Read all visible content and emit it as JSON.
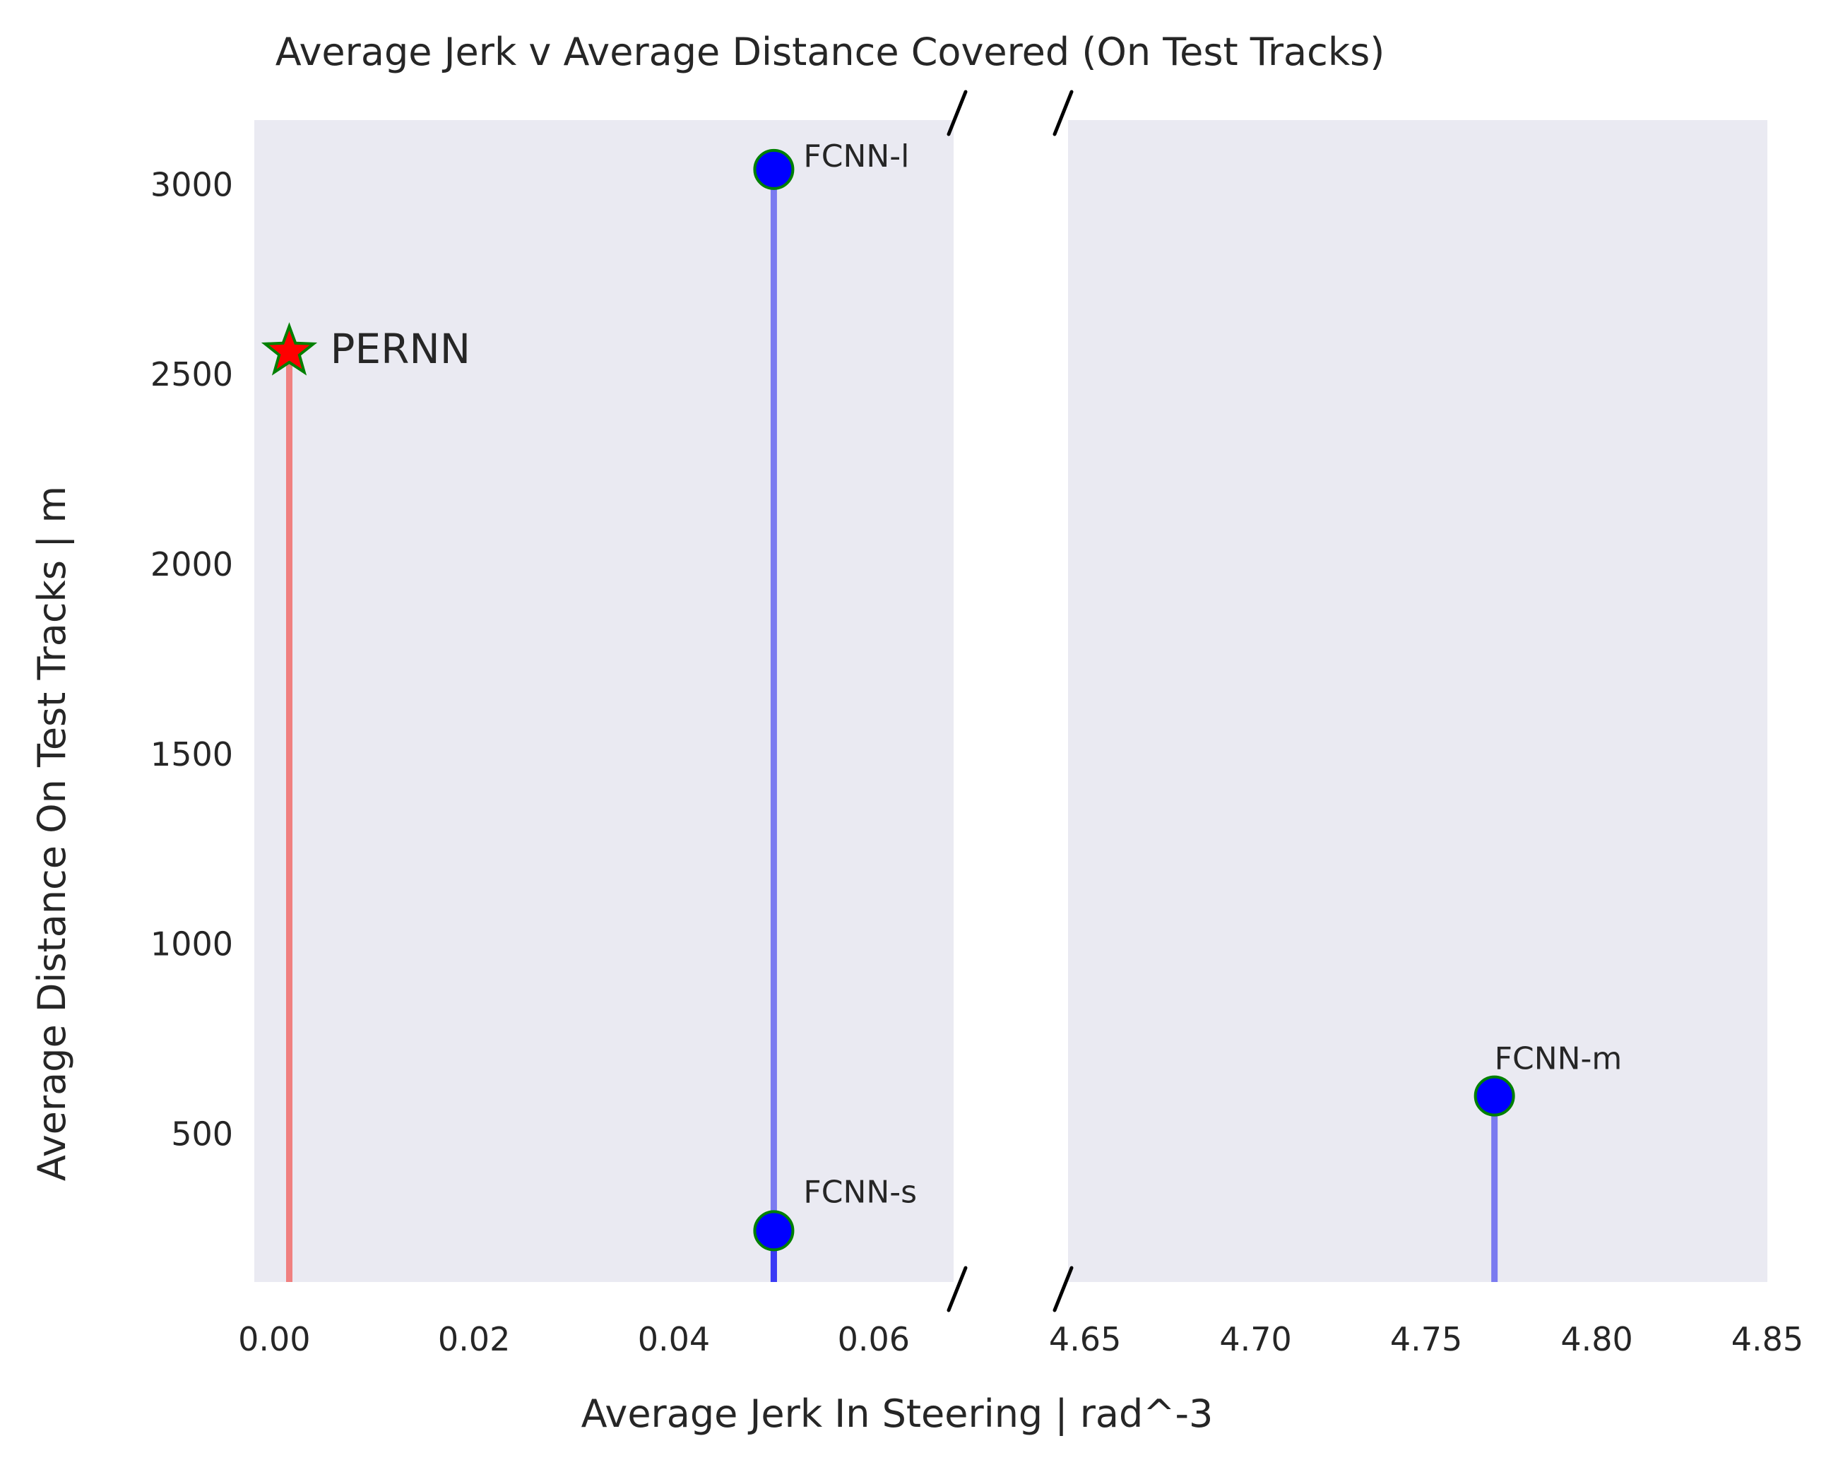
{
  "chart_data": {
    "type": "scatter",
    "title": "Average Jerk v Average Distance Covered (On Test Tracks)",
    "xlabel": "Average Jerk In Steering | rad^-3",
    "ylabel": "Average Distance On Test Tracks | m",
    "broken_x_axis": true,
    "x_segments": [
      {
        "xlim": [
          -0.002,
          0.068
        ],
        "xticks": [
          "0.00",
          "0.02",
          "0.04",
          "0.06"
        ],
        "xtick_values": [
          0.0,
          0.02,
          0.04,
          0.06
        ]
      },
      {
        "xlim": [
          4.645,
          4.85
        ],
        "xticks": [
          "4.65",
          "4.70",
          "4.75",
          "4.80",
          "4.85"
        ],
        "xtick_values": [
          4.65,
          4.7,
          4.75,
          4.8,
          4.85
        ]
      }
    ],
    "ylim": [
      110,
      3170
    ],
    "yticks": [
      "500",
      "1000",
      "1500",
      "2000",
      "2500",
      "3000"
    ],
    "ytick_values": [
      500,
      1000,
      1500,
      2000,
      2500,
      3000
    ],
    "grid": false,
    "background_color": "#eaeaf2",
    "points": [
      {
        "label": "PERNN",
        "x": 0.0015,
        "y": 2560,
        "marker": "star",
        "face_color": "#ff0000",
        "edge_color": "#008000",
        "stem_color": "#f08080"
      },
      {
        "label": "FCNN-l",
        "x": 0.05,
        "y": 3040,
        "marker": "circle",
        "face_color": "#0000ff",
        "edge_color": "#008000",
        "stem_color": "#7b7bf0"
      },
      {
        "label": "FCNN-s",
        "x": 0.05,
        "y": 245,
        "marker": "circle",
        "face_color": "#0000ff",
        "edge_color": "#008000",
        "stem_color": "#3a3af5"
      },
      {
        "label": "FCNN-m",
        "x": 4.77,
        "y": 600,
        "marker": "circle",
        "face_color": "#0000ff",
        "edge_color": "#008000",
        "stem_color": "#7b7bf0"
      }
    ]
  }
}
